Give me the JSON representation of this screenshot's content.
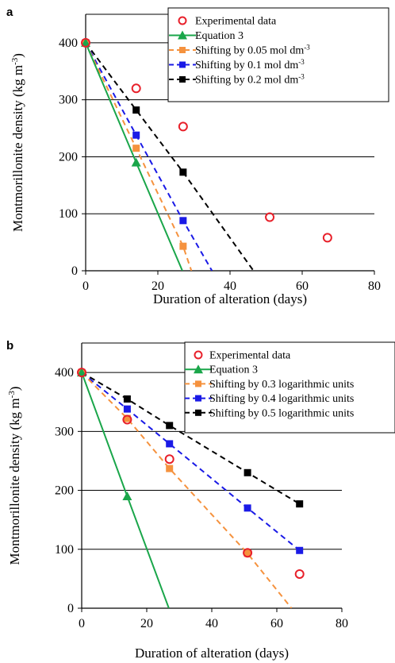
{
  "chart_data": [
    {
      "type": "line",
      "panel_label": "a",
      "xlabel": "Duration of alteration (days)",
      "ylabel": "Montmorillonite density  (kg m",
      "ylabel_sup": "-3",
      "ylabel_close": ")",
      "xlim": [
        0,
        80
      ],
      "ylim": [
        0,
        450
      ],
      "xticks": [
        0,
        20,
        40,
        60,
        80
      ],
      "yticks": [
        0,
        100,
        200,
        300,
        400
      ],
      "grid": "horizontal",
      "legend_position": "top-right",
      "series": [
        {
          "name": "Experimental data",
          "style": "markers",
          "marker": "circle-open",
          "color": "#e8202a",
          "x": [
            0,
            14,
            27,
            51,
            67
          ],
          "y": [
            400,
            320,
            253,
            94,
            58
          ]
        },
        {
          "name": "Equation 3",
          "style": "solid",
          "marker": "triangle",
          "color": "#1aa64a",
          "x": [
            0,
            14,
            26.8
          ],
          "y": [
            400,
            190,
            0
          ]
        },
        {
          "name": "Shifting by 0.05 mol dm",
          "name_sup": "-3",
          "style": "dashed",
          "marker": "square",
          "color": "#f5923e",
          "x": [
            0,
            14,
            27,
            29.3
          ],
          "y": [
            400,
            215,
            43,
            0
          ]
        },
        {
          "name": "Shifting by 0.1 mol dm",
          "name_sup": "-3",
          "style": "dashed",
          "marker": "square",
          "color": "#1a1ae6",
          "x": [
            0,
            14,
            27,
            35
          ],
          "y": [
            400,
            238,
            88,
            0
          ]
        },
        {
          "name": "Shifting by 0.2 mol dm",
          "name_sup": "-3",
          "style": "dashed",
          "marker": "square",
          "color": "#000000",
          "x": [
            0,
            14,
            27,
            46.5
          ],
          "y": [
            400,
            282,
            173,
            0
          ]
        }
      ]
    },
    {
      "type": "line",
      "panel_label": "b",
      "xlabel": "Duration of alteration (days)",
      "ylabel": "Montmorillonite density  (kg m",
      "ylabel_sup": "-3",
      "ylabel_close": ")",
      "xlim": [
        0,
        80
      ],
      "ylim": [
        0,
        450
      ],
      "xticks": [
        0,
        20,
        40,
        60,
        80
      ],
      "yticks": [
        0,
        100,
        200,
        300,
        400
      ],
      "grid": "horizontal",
      "legend_position": "top-right",
      "series": [
        {
          "name": "Experimental data",
          "style": "markers",
          "marker": "circle-open",
          "color": "#e8202a",
          "x": [
            0,
            14,
            27,
            51,
            67
          ],
          "y": [
            400,
            320,
            253,
            94,
            58
          ]
        },
        {
          "name": "Equation 3",
          "style": "solid",
          "marker": "triangle",
          "color": "#1aa64a",
          "x": [
            0,
            14,
            26.8
          ],
          "y": [
            400,
            190,
            0
          ]
        },
        {
          "name": "Shifting by 0.3 logarithmic units",
          "style": "dashed",
          "marker": "square",
          "color": "#f5923e",
          "x": [
            0,
            14,
            27,
            51,
            64.5
          ],
          "y": [
            400,
            322,
            237,
            93,
            0
          ]
        },
        {
          "name": "Shifting by 0.4 logarithmic units",
          "style": "dashed",
          "marker": "square",
          "color": "#1a1ae6",
          "x": [
            0,
            14,
            27,
            51,
            67
          ],
          "y": [
            400,
            338,
            279,
            170,
            98
          ]
        },
        {
          "name": "Shifting by 0.5 logarithmic units",
          "style": "dashed",
          "marker": "square",
          "color": "#000000",
          "x": [
            0,
            14,
            27,
            51,
            67
          ],
          "y": [
            400,
            355,
            310,
            230,
            177
          ]
        }
      ]
    }
  ]
}
